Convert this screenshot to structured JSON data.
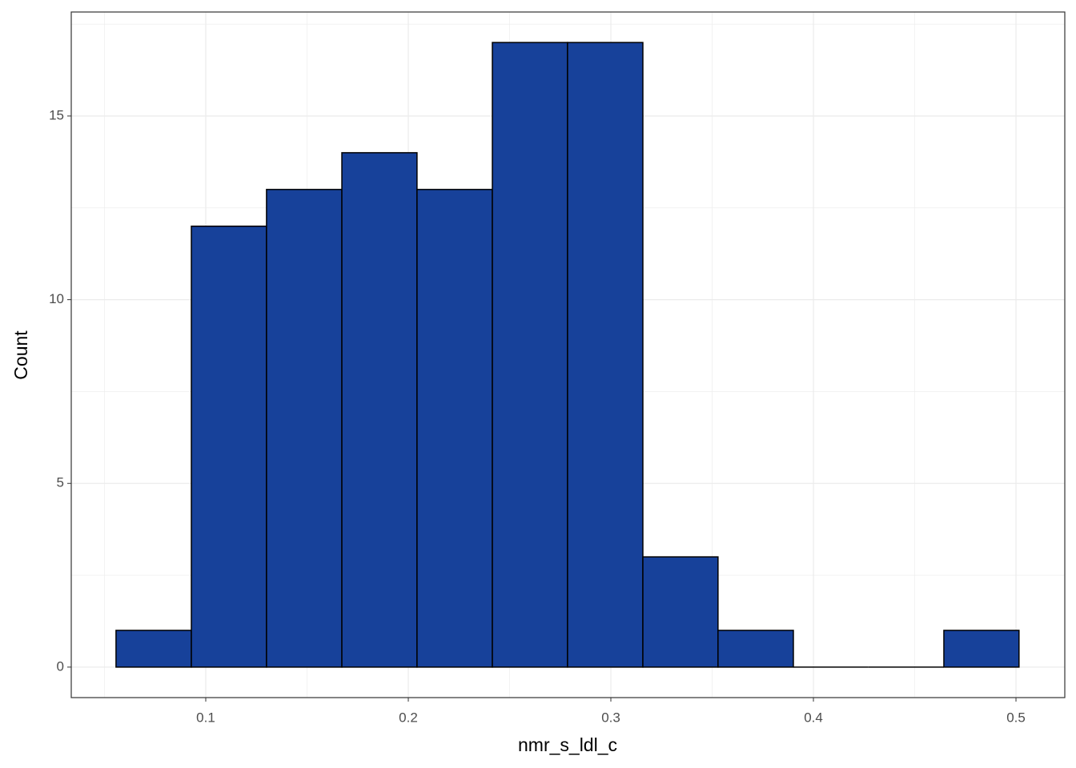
{
  "chart_data": {
    "type": "histogram",
    "x_label": "nmr_s_ldl_c",
    "y_label": "Count",
    "bins": [
      0.0557,
      0.0929,
      0.13,
      0.1672,
      0.2043,
      0.2415,
      0.2786,
      0.3158,
      0.3529,
      0.3901,
      0.4272,
      0.4644,
      0.5015
    ],
    "values": [
      1,
      12,
      13,
      14,
      13,
      17,
      17,
      3,
      1,
      0,
      0,
      1
    ],
    "color": "#17419a",
    "edge_color": "#000000",
    "xlim": [
      0.0336,
      0.5241
    ],
    "ylim": [
      -0.83,
      17.83
    ],
    "xticks": [
      0.1,
      0.2,
      0.3,
      0.4,
      0.5
    ],
    "yticks": [
      0,
      5,
      10,
      15
    ],
    "grid": true,
    "minor_grid": true
  }
}
